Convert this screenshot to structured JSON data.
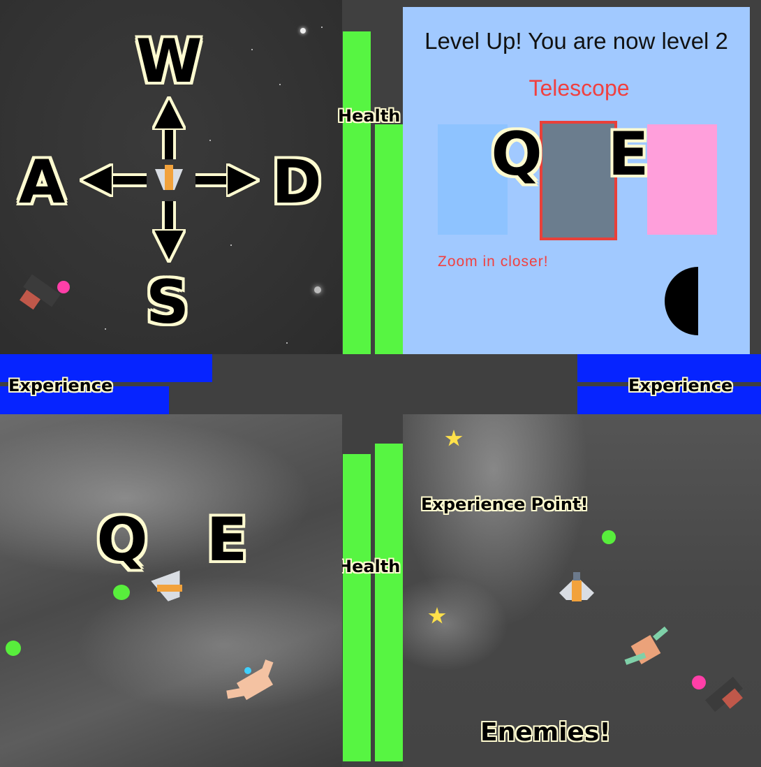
{
  "controls": {
    "key_w": "W",
    "key_a": "A",
    "key_s": "S",
    "key_d": "D",
    "key_q": "Q",
    "key_e": "E"
  },
  "hud": {
    "health_label": "Health",
    "experience_label": "Experience"
  },
  "level_up": {
    "title": "Level Up! You are now level 2",
    "selected_upgrade": "Telescope",
    "hint": "Zoom in closer!",
    "card_colors": [
      "#8ec3ff",
      "#6b7d8e",
      "#ff9fdb"
    ]
  },
  "annotations": {
    "experience_point": "Experience Point!",
    "enemies": "Enemies!"
  },
  "colors": {
    "health": "#57f542",
    "experience": "#0624ff",
    "outline": "#fffbd0",
    "panel_bg": "#a1c9ff",
    "accent_text": "#f04040"
  }
}
